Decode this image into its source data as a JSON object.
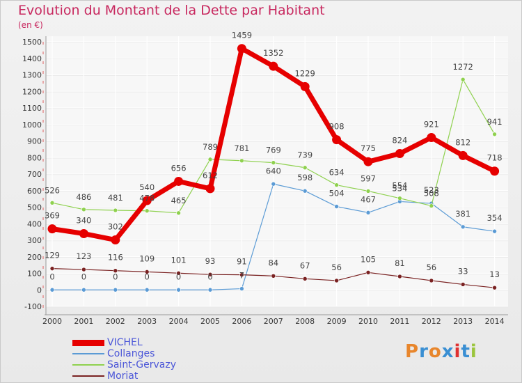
{
  "header": {
    "title": "Evolution du Montant de la Dette par Habitant",
    "subtitle": "(en €)"
  },
  "logo": {
    "text": "Proxiti",
    "colors": [
      "#e8862c",
      "#3a8fd3",
      "#e8862c",
      "#3a8fd3",
      "#e03131",
      "#3a8fd3",
      "#9bc53d"
    ]
  },
  "chart_data": {
    "type": "line",
    "categories": [
      "2000",
      "2001",
      "2002",
      "2003",
      "2004",
      "2005",
      "2006",
      "2007",
      "2008",
      "2009",
      "2010",
      "2011",
      "2012",
      "2013",
      "2014"
    ],
    "ylim": [
      -100,
      1500
    ],
    "yticks": [
      -100,
      0,
      100,
      200,
      300,
      400,
      500,
      600,
      700,
      800,
      900,
      1000,
      1100,
      1200,
      1300,
      1400,
      1500
    ],
    "grid": true,
    "legend_placement": "bottom-left",
    "series": [
      {
        "name": "VICHEL",
        "color": "#e60000",
        "values": [
          369,
          340,
          302,
          540,
          656,
          612,
          1459,
          1352,
          1229,
          908,
          775,
          824,
          921,
          812,
          718
        ]
      },
      {
        "name": "Collanges",
        "color": "#5b9bd5",
        "values": [
          0,
          0,
          0,
          0,
          0,
          0,
          7,
          640,
          598,
          504,
          467,
          534,
          523,
          381,
          354
        ]
      },
      {
        "name": "Saint-Gervazy",
        "color": "#8fd14f",
        "values": [
          526,
          486,
          481,
          478,
          465,
          789,
          781,
          769,
          739,
          634,
          597,
          554,
          508,
          1272,
          941
        ]
      },
      {
        "name": "Moriat",
        "color": "#7a2222",
        "values": [
          129,
          123,
          116,
          109,
          101,
          93,
          91,
          84,
          67,
          56,
          105,
          81,
          56,
          33,
          13
        ]
      }
    ]
  }
}
